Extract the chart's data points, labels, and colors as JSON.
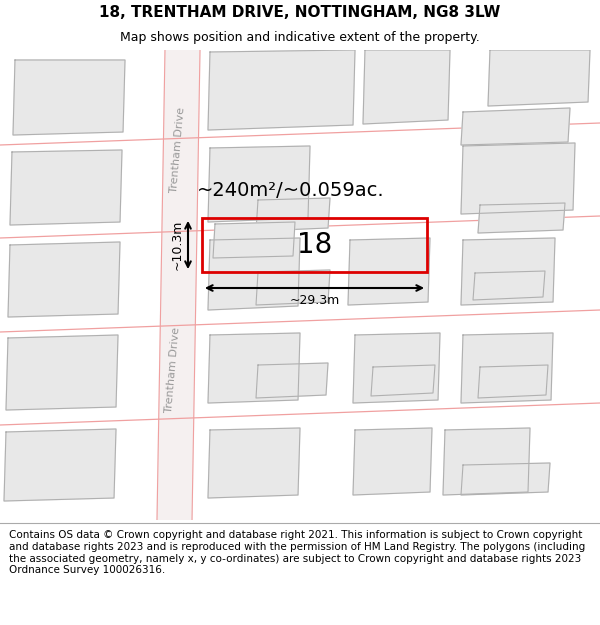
{
  "title": "18, TRENTHAM DRIVE, NOTTINGHAM, NG8 3LW",
  "subtitle": "Map shows position and indicative extent of the property.",
  "footer": "Contains OS data © Crown copyright and database right 2021. This information is subject to Crown copyright and database rights 2023 and is reproduced with the permission of HM Land Registry. The polygons (including the associated geometry, namely x, y co-ordinates) are subject to Crown copyright and database rights 2023 Ordnance Survey 100026316.",
  "map_bg": "#ffffff",
  "building_fill": "#e8e8e8",
  "building_edge": "#b0b0b0",
  "road_line_color": "#f0a0a0",
  "highlight_fill": "#ffffff",
  "highlight_edge": "#dd0000",
  "street_label": "Trentham Drive",
  "area_label": "~240m²/~0.059ac.",
  "width_label": "~29.3m",
  "height_label": "~10.3m",
  "property_number": "18",
  "title_fontsize": 11,
  "subtitle_fontsize": 9,
  "footer_fontsize": 7.5
}
